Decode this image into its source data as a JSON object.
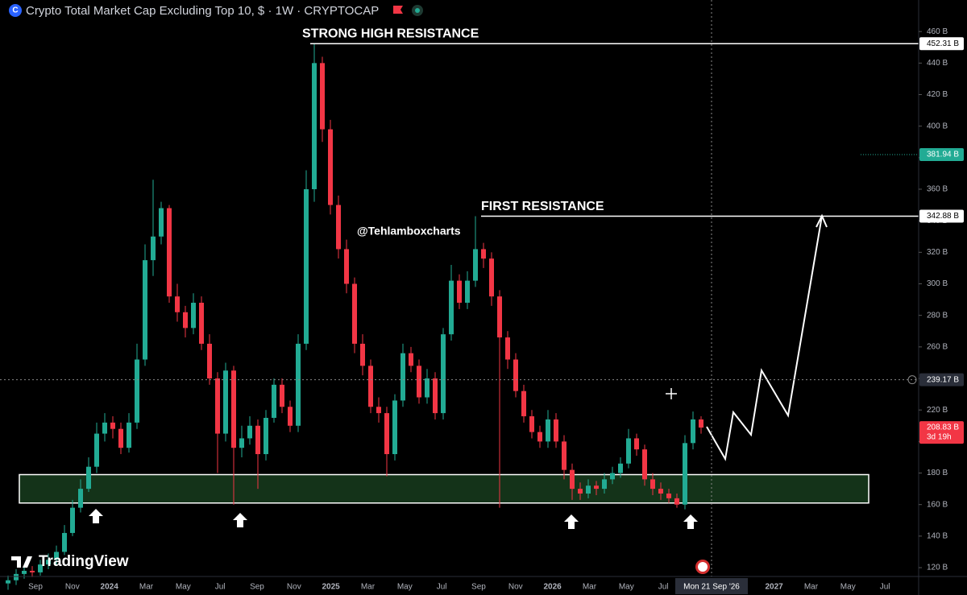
{
  "chart_data": {
    "type": "candlestick",
    "title": "Crypto Total Market Cap Excluding Top 10, $ · 1W · CRYPTOCAP",
    "up_color": "#22ab94",
    "down_color": "#f23645",
    "ylim": [
      114.4,
      480
    ],
    "yticks": [
      {
        "value": 120,
        "label": "120 B"
      },
      {
        "value": 140,
        "label": "140 B"
      },
      {
        "value": 160,
        "label": "160 B"
      },
      {
        "value": 180,
        "label": "180 B"
      },
      {
        "value": 200,
        "label": "200 B"
      },
      {
        "value": 220,
        "label": "220 B"
      },
      {
        "value": 240,
        "label": "240 B"
      },
      {
        "value": 260,
        "label": "260 B"
      },
      {
        "value": 280,
        "label": "280 B"
      },
      {
        "value": 300,
        "label": "300 B"
      },
      {
        "value": 320,
        "label": "320 B"
      },
      {
        "value": 340,
        "label": "340 B"
      },
      {
        "value": 360,
        "label": "360 B"
      },
      {
        "value": 380,
        "label": "380 B"
      },
      {
        "value": 400,
        "label": "400 B"
      },
      {
        "value": 420,
        "label": "420 B"
      },
      {
        "value": 440,
        "label": "440 B"
      },
      {
        "value": 460,
        "label": "460 B"
      }
    ],
    "x_labels": [
      "Sep",
      "Nov",
      "2024",
      "Mar",
      "May",
      "Jul",
      "Sep",
      "Nov",
      "2025",
      "Mar",
      "May",
      "Jul",
      "Sep",
      "Nov",
      "2026",
      "Mar",
      "May",
      "Jul",
      "2027",
      "Mar",
      "May",
      "Jul"
    ],
    "crosshair_x_label": "Mon 21 Sep '26",
    "open": [
      110,
      112,
      116,
      118,
      117,
      122,
      125,
      130,
      142,
      158,
      170,
      184,
      205,
      212,
      208,
      196,
      212,
      252,
      315,
      330,
      348,
      292,
      282,
      272,
      288,
      262,
      240,
      205,
      245,
      196,
      202,
      210,
      192,
      215,
      236,
      222,
      210,
      262,
      360,
      440,
      398,
      350,
      322,
      300,
      262,
      248,
      222,
      218,
      192,
      226,
      256,
      248,
      228,
      240,
      218,
      268,
      302,
      288,
      302,
      322,
      316,
      292,
      266,
      252,
      232,
      216,
      206,
      200,
      214,
      200,
      182,
      170,
      167,
      172,
      170,
      176,
      180,
      186,
      202,
      195,
      176,
      170,
      167,
      164,
      160,
      199,
      214
    ],
    "high": [
      115,
      119,
      121,
      121,
      125,
      129,
      134,
      147,
      163,
      176,
      190,
      212,
      218,
      216,
      212,
      218,
      262,
      325,
      366,
      352,
      350,
      300,
      286,
      294,
      292,
      268,
      244,
      250,
      248,
      210,
      216,
      214,
      220,
      240,
      240,
      226,
      268,
      372,
      452.31,
      444,
      404,
      356,
      328,
      304,
      268,
      252,
      228,
      222,
      230,
      262,
      260,
      252,
      246,
      244,
      272,
      312,
      306,
      308,
      342.88,
      326,
      320,
      296,
      270,
      256,
      236,
      220,
      210,
      220,
      218,
      204,
      186,
      174,
      176,
      175,
      180,
      184,
      190,
      208,
      205,
      198,
      180,
      174,
      170,
      167,
      204,
      219,
      216
    ],
    "low": [
      106,
      109,
      113,
      114,
      115,
      119,
      122,
      128,
      140,
      155,
      168,
      180,
      200,
      202,
      192,
      193,
      208,
      248,
      305,
      325,
      288,
      276,
      266,
      268,
      258,
      236,
      180,
      200,
      160,
      190,
      198,
      170,
      188,
      212,
      218,
      206,
      206,
      258,
      352,
      390,
      344,
      316,
      294,
      256,
      242,
      218,
      212,
      178,
      188,
      222,
      244,
      224,
      224,
      214,
      214,
      264,
      284,
      284,
      298,
      310,
      286,
      158,
      246,
      228,
      212,
      202,
      196,
      196,
      196,
      176,
      163,
      163,
      164,
      166,
      167,
      173,
      177,
      183,
      191,
      172,
      166,
      163,
      161,
      158,
      157,
      195,
      205
    ],
    "close": [
      112,
      116,
      118,
      117,
      122,
      125,
      130,
      142,
      158,
      170,
      184,
      205,
      212,
      208,
      196,
      212,
      252,
      315,
      330,
      348,
      292,
      282,
      272,
      288,
      262,
      240,
      205,
      245,
      196,
      202,
      210,
      192,
      215,
      236,
      222,
      210,
      262,
      360,
      440,
      398,
      350,
      322,
      300,
      262,
      248,
      222,
      218,
      192,
      226,
      256,
      248,
      228,
      240,
      218,
      268,
      302,
      288,
      302,
      322,
      316,
      292,
      266,
      252,
      232,
      216,
      206,
      200,
      214,
      200,
      182,
      170,
      167,
      172,
      170,
      176,
      180,
      186,
      202,
      195,
      176,
      170,
      167,
      164,
      160,
      199,
      214,
      208.83
    ],
    "zone": {
      "low": 161,
      "high": 179
    },
    "strong_resistance": {
      "text": "STRONG HIGH RESISTANCE",
      "value": 452.31,
      "label": "452.31 B"
    },
    "first_resistance": {
      "text": "FIRST RESISTANCE",
      "value": 342.88,
      "label": "342.88 B"
    },
    "marker_price": {
      "value": 381.94,
      "label": "381.94 B"
    },
    "crosshair_price": {
      "value": 239.17,
      "label": "239.17 B"
    },
    "last_price": {
      "value": 208.83,
      "label": "208.83 B",
      "countdown": "3d 19h"
    },
    "watermark": "@Tehlamboxcharts",
    "logo": "TradingView"
  }
}
